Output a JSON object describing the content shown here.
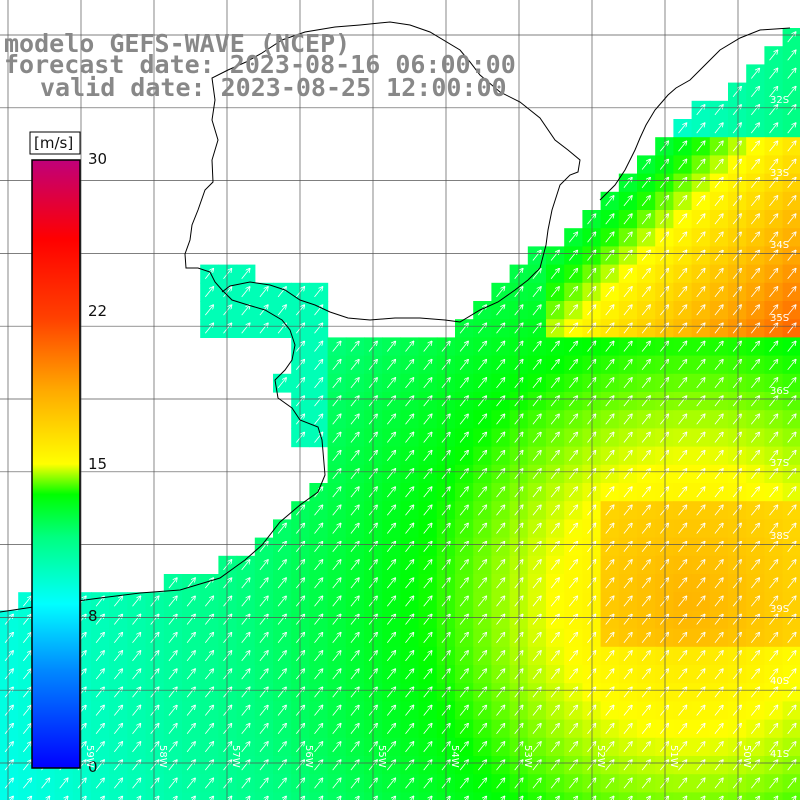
{
  "title": {
    "line1": "modelo GEFS-WAVE (NCEP)",
    "line2": "forecast date: 2023-08-16 06:00:00",
    "line3": "valid date: 2023-08-25 12:00:00"
  },
  "colorbar": {
    "unit": "[m/s]",
    "ticks": [
      "30",
      "22",
      "15",
      "8",
      "0"
    ],
    "tick_values": [
      30,
      22,
      15,
      8,
      0
    ],
    "colors": [
      "#0000ff",
      "#00aaff",
      "#00ffff",
      "#00ff00",
      "#ffff00",
      "#ff8000",
      "#ff0000",
      "#c0007a"
    ]
  },
  "lat_labels": [
    "32S",
    "33S",
    "34S",
    "35S",
    "36S",
    "37S",
    "38S",
    "39S",
    "40S",
    "41S"
  ],
  "lon_labels": [
    "59W",
    "58W",
    "57W",
    "56W",
    "55W",
    "54W",
    "53W",
    "52W",
    "51W",
    "50W"
  ],
  "colors": {
    "land": "#ffffff",
    "grid": "#555555",
    "coast": "#000000",
    "title": "#888888"
  }
}
